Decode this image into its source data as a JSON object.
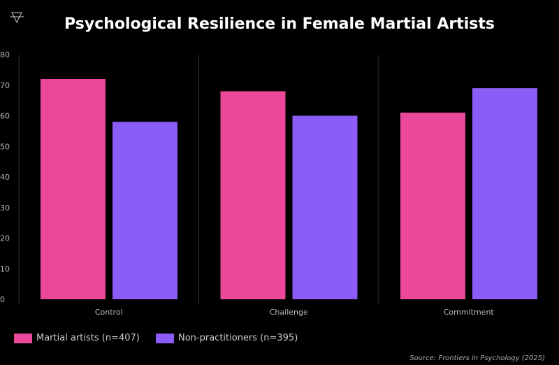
{
  "chart_data": {
    "type": "bar",
    "title": "Psychological Resilience in Female Martial Artists",
    "categories": [
      "Control",
      "Challenge",
      "Commitment"
    ],
    "series": [
      {
        "name": "Martial artists (n=407)",
        "values": [
          72,
          68,
          61
        ],
        "color": "#EC4899"
      },
      {
        "name": "Non-practitioners (n=395)",
        "values": [
          58,
          60,
          69
        ],
        "color": "#8B5CF6"
      }
    ],
    "ylim": [
      0,
      80
    ],
    "yticks": [
      0,
      10,
      20,
      30,
      40,
      50,
      60,
      70,
      80
    ],
    "grid": false,
    "legend_position": "bottom-left",
    "source": "Source: Frontiers in Psychology (2025)"
  },
  "logo_icon": "alchemical-triangle-icon"
}
